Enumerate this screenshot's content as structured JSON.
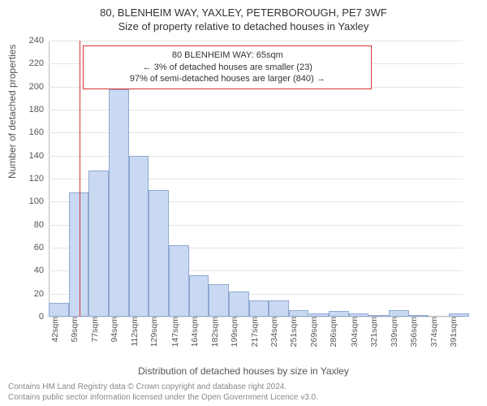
{
  "titles": {
    "line1": "80, BLENHEIM WAY, YAXLEY, PETERBOROUGH, PE7 3WF",
    "line2": "Size of property relative to detached houses in Yaxley"
  },
  "y_axis": {
    "label": "Number of detached properties",
    "ticks": [
      0,
      20,
      40,
      60,
      80,
      100,
      120,
      140,
      160,
      180,
      200,
      220,
      240
    ],
    "min": 0,
    "max": 240,
    "tick_label_fontsize": 11,
    "label_fontsize": 12
  },
  "x_axis": {
    "label": "Distribution of detached houses by size in Yaxley",
    "ticks": [
      "42sqm",
      "59sqm",
      "77sqm",
      "94sqm",
      "112sqm",
      "129sqm",
      "147sqm",
      "164sqm",
      "182sqm",
      "199sqm",
      "217sqm",
      "234sqm",
      "251sqm",
      "269sqm",
      "286sqm",
      "304sqm",
      "321sqm",
      "339sqm",
      "356sqm",
      "374sqm",
      "391sqm"
    ],
    "tick_values": [
      42,
      59,
      77,
      94,
      112,
      129,
      147,
      164,
      182,
      199,
      217,
      234,
      251,
      269,
      286,
      304,
      321,
      339,
      356,
      374,
      391
    ],
    "min": 38,
    "max": 400,
    "tick_label_fontsize": 10.5,
    "label_fontsize": 12
  },
  "chart": {
    "type": "histogram",
    "bin_width_sqm": 17.5,
    "bins": [
      {
        "start": 38,
        "value": 12
      },
      {
        "start": 55.5,
        "value": 108
      },
      {
        "start": 73,
        "value": 127
      },
      {
        "start": 90.5,
        "value": 198
      },
      {
        "start": 108,
        "value": 140
      },
      {
        "start": 125.5,
        "value": 110
      },
      {
        "start": 143,
        "value": 62
      },
      {
        "start": 160.5,
        "value": 36
      },
      {
        "start": 178,
        "value": 28
      },
      {
        "start": 195.5,
        "value": 22
      },
      {
        "start": 213,
        "value": 14
      },
      {
        "start": 230.5,
        "value": 14
      },
      {
        "start": 248,
        "value": 6
      },
      {
        "start": 265.5,
        "value": 3
      },
      {
        "start": 283,
        "value": 5
      },
      {
        "start": 300.5,
        "value": 3
      },
      {
        "start": 318,
        "value": 1
      },
      {
        "start": 335.5,
        "value": 6
      },
      {
        "start": 353,
        "value": 1
      },
      {
        "start": 370.5,
        "value": 0
      },
      {
        "start": 388,
        "value": 3
      }
    ],
    "bar_fill": "#c9d9f2",
    "bar_stroke": "#8fa8d1",
    "background_color": "#ffffff",
    "grid_color": "#e5e5e5",
    "axis_color": "#bbbbbb"
  },
  "marker": {
    "value_sqm": 65,
    "color": "#d93333"
  },
  "annotation": {
    "lines": [
      "80 BLENHEIM WAY: 65sqm",
      "← 3% of detached houses are smaller (23)",
      "97% of semi-detached houses are larger (840) →"
    ],
    "border_color": "#d93333",
    "left_sqm": 68,
    "right_sqm": 308,
    "top_value": 236,
    "fontsize": 11
  },
  "attribution": {
    "line1": "Contains HM Land Registry data © Crown copyright and database right 2024.",
    "line2": "Contains public sector information licensed under the Open Government Licence v3.0.",
    "fontsize": 10,
    "color": "#888888"
  }
}
